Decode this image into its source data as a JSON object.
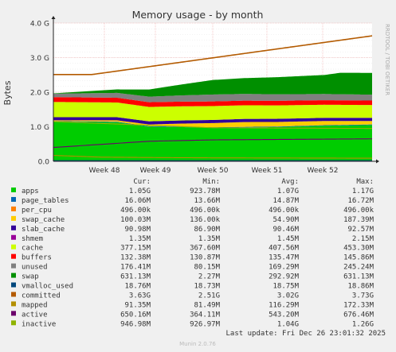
{
  "chart_data": {
    "type": "area",
    "title": "Memory usage - by month",
    "ylabel": "Bytes",
    "side_label": "RRDTOOL / TOBI OETIKER",
    "ylim": [
      0,
      4.0
    ],
    "y_unit": "G",
    "yticks": [
      {
        "value": 0.0,
        "label": "0.0"
      },
      {
        "value": 1.0,
        "label": "1.0 G"
      },
      {
        "value": 2.0,
        "label": "2.0 G"
      },
      {
        "value": 3.0,
        "label": "3.0 G"
      },
      {
        "value": 4.0,
        "label": "4.0 G"
      }
    ],
    "x_domain": [
      "Week 47 (partial)",
      "end of Week 52"
    ],
    "xticks": [
      {
        "label": "Week 48",
        "pos": 0.16
      },
      {
        "label": "Week 49",
        "pos": 0.32
      },
      {
        "label": "Week 50",
        "pos": 0.5
      },
      {
        "label": "Week 51",
        "pos": 0.67
      },
      {
        "label": "Week 52",
        "pos": 0.845
      }
    ],
    "columns": [
      "Cur:",
      "Min:",
      "Avg:",
      "Max:"
    ],
    "series": [
      {
        "name": "apps",
        "color": "#00cc00",
        "cur": "1.05G",
        "min": "923.78M",
        "avg": "1.07G",
        "max": "1.17G",
        "x": [
          0,
          0.2,
          0.3,
          0.4,
          0.5,
          0.7,
          0.85,
          1
        ],
        "values": [
          1.15,
          1.13,
          1.0,
          0.99,
          0.97,
          0.99,
          1.03,
          1.05
        ]
      },
      {
        "name": "page_tables",
        "color": "#0066b3",
        "cur": "16.06M",
        "min": "13.66M",
        "avg": "14.87M",
        "max": "16.72M",
        "x": [
          0,
          1
        ],
        "values": [
          0.015,
          0.016
        ]
      },
      {
        "name": "per_cpu",
        "color": "#ff8000",
        "cur": "496.00k",
        "min": "496.00k",
        "avg": "496.00k",
        "max": "496.00k",
        "x": [
          0,
          1
        ],
        "values": [
          0.0005,
          0.0005
        ]
      },
      {
        "name": "swap_cache",
        "color": "#ffcc00",
        "cur": "100.03M",
        "min": "136.00k",
        "avg": "54.90M",
        "max": "187.39M",
        "x": [
          0,
          0.3,
          0.5,
          0.6,
          0.85,
          1
        ],
        "values": [
          0.02,
          0.05,
          0.12,
          0.14,
          0.12,
          0.1
        ]
      },
      {
        "name": "slab_cache",
        "color": "#330099",
        "cur": "90.98M",
        "min": "86.90M",
        "avg": "90.46M",
        "max": "92.57M",
        "x": [
          0,
          1
        ],
        "values": [
          0.09,
          0.09
        ]
      },
      {
        "name": "shmem",
        "color": "#990099",
        "cur": "1.35M",
        "min": "1.35M",
        "avg": "1.45M",
        "max": "2.15M",
        "x": [
          0,
          1
        ],
        "values": [
          0.0015,
          0.0013
        ]
      },
      {
        "name": "cache",
        "color": "#ccff00",
        "cur": "377.15M",
        "min": "367.60M",
        "avg": "407.56M",
        "max": "453.30M",
        "x": [
          0,
          0.5,
          1
        ],
        "values": [
          0.44,
          0.4,
          0.37
        ]
      },
      {
        "name": "buffers",
        "color": "#ff0000",
        "cur": "132.38M",
        "min": "130.87M",
        "avg": "135.47M",
        "max": "145.86M",
        "x": [
          0,
          1
        ],
        "values": [
          0.14,
          0.13
        ]
      },
      {
        "name": "unused",
        "color": "#808080",
        "cur": "176.41M",
        "min": "80.15M",
        "avg": "169.29M",
        "max": "245.24M",
        "x": [
          0,
          0.5,
          1
        ],
        "values": [
          0.1,
          0.2,
          0.17
        ]
      },
      {
        "name": "swap",
        "color": "#008f00",
        "cur": "631.13M",
        "min": "2.27M",
        "avg": "292.92M",
        "max": "631.13M",
        "x": [
          0,
          0.2,
          0.5,
          0.85,
          0.9,
          1
        ],
        "values": [
          0.01,
          0.1,
          0.42,
          0.55,
          0.62,
          0.63
        ]
      },
      {
        "name": "vmalloc_used",
        "color": "#00487d",
        "cur": "18.76M",
        "min": "18.73M",
        "avg": "18.75M",
        "max": "18.86M",
        "x": [
          0,
          1
        ],
        "values": [
          0.019,
          0.019
        ]
      },
      {
        "name": "committed",
        "color": "#b35a00",
        "cur": "3.63G",
        "min": "2.51G",
        "avg": "3.02G",
        "max": "3.73G",
        "x": [
          0,
          0.12,
          0.16,
          1
        ],
        "values": [
          2.51,
          2.51,
          2.56,
          3.63
        ]
      },
      {
        "name": "mapped",
        "color": "#b38f00",
        "cur": "91.35M",
        "min": "81.49M",
        "avg": "116.29M",
        "max": "172.33M",
        "x": [
          0,
          0.15,
          0.3,
          0.5,
          1
        ],
        "values": [
          0.17,
          0.12,
          0.11,
          0.1,
          0.09
        ]
      },
      {
        "name": "active",
        "color": "#6b006b",
        "cur": "650.16M",
        "min": "364.11M",
        "avg": "543.20M",
        "max": "676.46M",
        "x": [
          0,
          0.3,
          0.5,
          1
        ],
        "values": [
          0.4,
          0.58,
          0.62,
          0.65
        ]
      },
      {
        "name": "inactive",
        "color": "#8fb300",
        "cur": "946.98M",
        "min": "926.97M",
        "avg": "1.04G",
        "max": "1.26G",
        "x": [
          0,
          0.5,
          1
        ],
        "values": [
          1.15,
          0.97,
          0.95
        ]
      }
    ],
    "stacked_legend": [
      "apps",
      "page_tables",
      "per_cpu",
      "swap_cache",
      "slab_cache",
      "shmem",
      "cache",
      "buffers",
      "unused",
      "swap"
    ],
    "line_series": [
      "vmalloc_used",
      "committed",
      "mapped",
      "active",
      "inactive"
    ],
    "grid": true,
    "last_update": "Last update:  Fri Dec 26 23:01:32 2025",
    "footer": "Munin 2.0.76"
  }
}
